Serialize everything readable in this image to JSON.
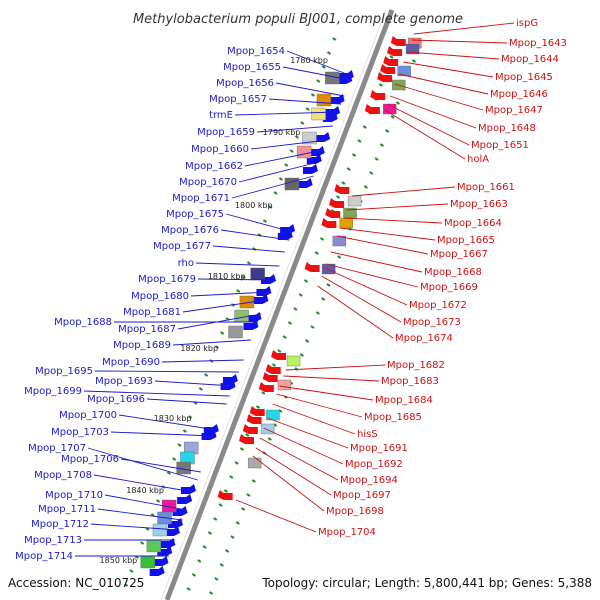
{
  "title": "Methylobacterium populi BJ001, complete genome",
  "footer": {
    "accession": "Accession: NC_010725",
    "summary": "Topology: circular; Length: 5,800,441 bp; Genes: 5,388"
  },
  "colors": {
    "left_label": "#1a1acc",
    "right_label": "#cc1111",
    "backbone": "#8a8a8a",
    "tick": "#2e8b2e",
    "forward_arrow": "#1010ee",
    "reverse_arrow": "#ee1010"
  },
  "scale_marks": [
    "1780 kbp",
    "1790 kbp",
    "1800 kbp",
    "1810 kbp",
    "1820 kbp",
    "1830 kbp",
    "1840 kbp",
    "1850 kbp"
  ],
  "left_labels": [
    "Mpop_1654",
    "Mpop_1655",
    "Mpop_1656",
    "Mpop_1657",
    "trmE",
    "Mpop_1659",
    "Mpop_1660",
    "Mpop_1662",
    "Mpop_1670",
    "Mpop_1671",
    "Mpop_1675",
    "Mpop_1676",
    "Mpop_1677",
    "rho",
    "Mpop_1679",
    "Mpop_1680",
    "Mpop_1681",
    "Mpop_1688",
    "Mpop_1687",
    "Mpop_1689",
    "Mpop_1690",
    "Mpop_1695",
    "Mpop_1693",
    "Mpop_1699",
    "Mpop_1696",
    "Mpop_1700",
    "Mpop_1703",
    "Mpop_1707",
    "Mpop_1706",
    "Mpop_1708",
    "Mpop_1710",
    "Mpop_1711",
    "Mpop_1712",
    "Mpop_1713",
    "Mpop_1714"
  ],
  "right_labels": [
    "ispG",
    "Mpop_1643",
    "Mpop_1644",
    "Mpop_1645",
    "Mpop_1646",
    "Mpop_1647",
    "Mpop_1648",
    "Mpop_1651",
    "holA",
    "Mpop_1661",
    "Mpop_1663",
    "Mpop_1664",
    "Mpop_1665",
    "Mpop_1667",
    "Mpop_1668",
    "Mpop_1669",
    "Mpop_1672",
    "Mpop_1673",
    "Mpop_1674",
    "Mpop_1682",
    "Mpop_1683",
    "Mpop_1684",
    "Mpop_1685",
    "hisS",
    "Mpop_1691",
    "Mpop_1692",
    "Mpop_1694",
    "Mpop_1697",
    "Mpop_1698",
    "Mpop_1704"
  ]
}
